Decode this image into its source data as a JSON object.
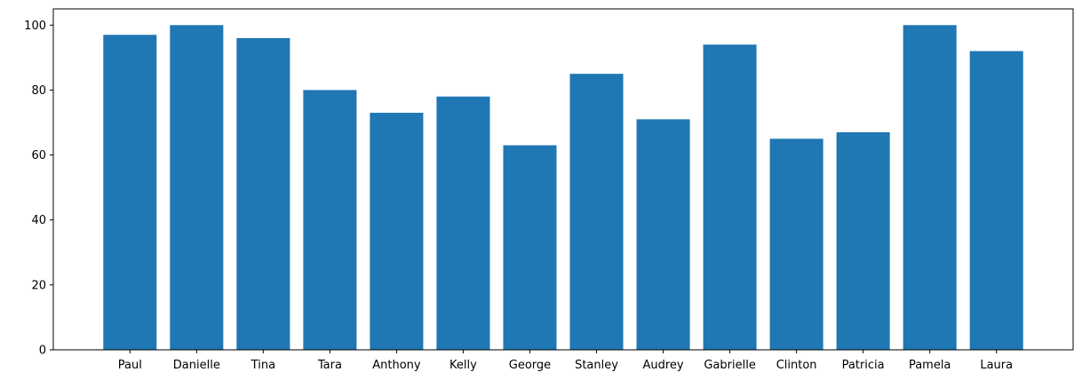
{
  "chart_data": {
    "type": "bar",
    "title": "",
    "xlabel": "",
    "ylabel": "",
    "categories": [
      "Paul",
      "Danielle",
      "Tina",
      "Tara",
      "Anthony",
      "Kelly",
      "George",
      "Stanley",
      "Audrey",
      "Gabrielle",
      "Clinton",
      "Patricia",
      "Pamela",
      "Laura"
    ],
    "values": [
      97,
      100,
      96,
      80,
      73,
      78,
      63,
      85,
      71,
      94,
      65,
      67,
      100,
      92
    ],
    "ylim": [
      0,
      105
    ],
    "yticks": [
      0,
      20,
      40,
      60,
      80,
      100
    ],
    "grid": false,
    "bar_color": "#1f77b4"
  }
}
